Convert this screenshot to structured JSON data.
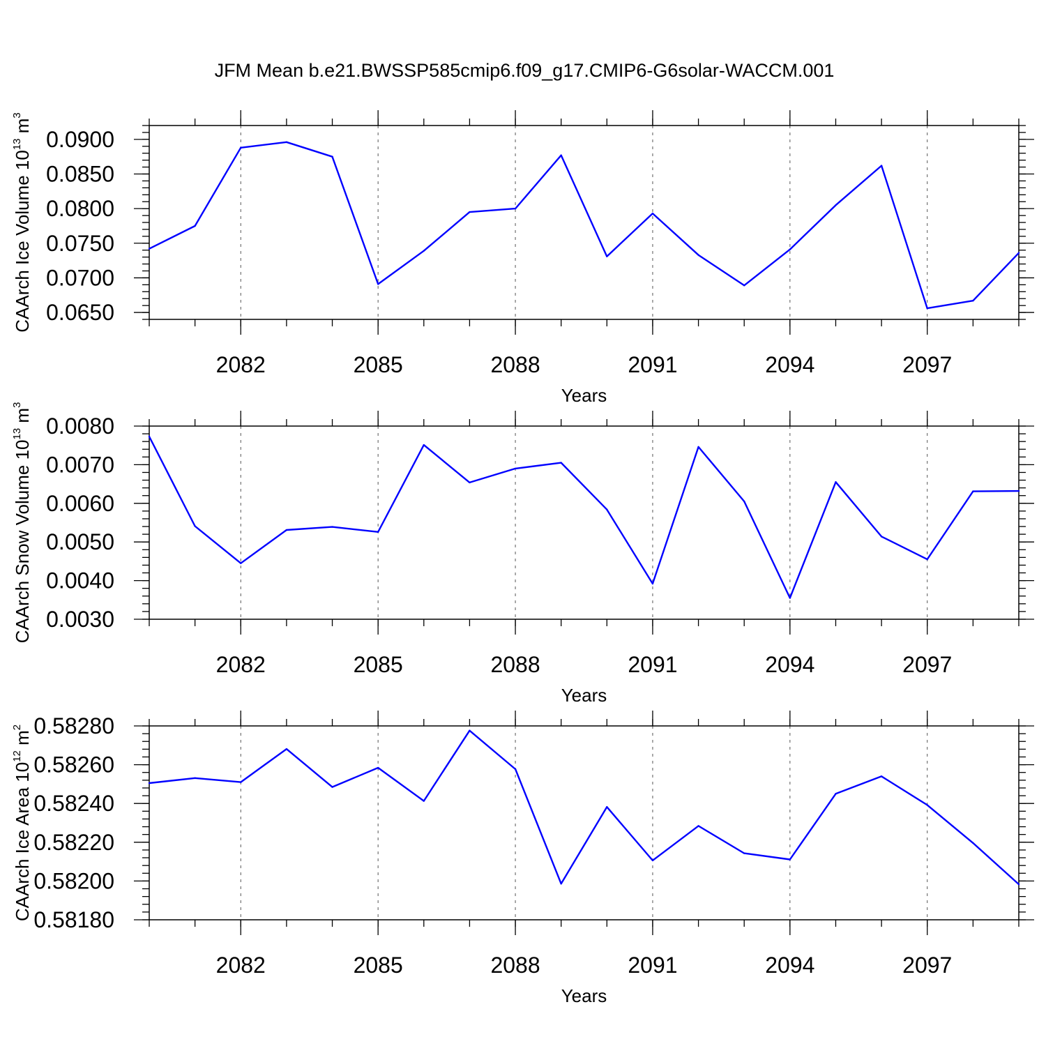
{
  "title": "JFM Mean b.e21.BWSSP585cmip6.f09_g17.CMIP6-G6solar-WACCM.001",
  "colors": {
    "line": "#0000ff",
    "axis": "#000000",
    "grid": "#555555",
    "background": "#ffffff"
  },
  "chart_data": [
    {
      "type": "line",
      "ylabel": "CAArch Ice Volume 10",
      "ylabel_exponent": "13",
      "ylabel_unit": "m",
      "ylabel_unit_exponent": "3",
      "xlabel": "Years",
      "xlim": [
        2080,
        2099
      ],
      "ylim": [
        0.064,
        0.092
      ],
      "x_ticks": [
        2082,
        2085,
        2088,
        2091,
        2094,
        2097
      ],
      "x_tick_labels": [
        "2082",
        "2085",
        "2088",
        "2091",
        "2094",
        "2097"
      ],
      "y_ticks": [
        0.065,
        0.07,
        0.075,
        0.08,
        0.085,
        0.09
      ],
      "y_tick_labels": [
        "0.0650",
        "0.0700",
        "0.0750",
        "0.0800",
        "0.0850",
        "0.0900"
      ],
      "grid": "vertical dashed at labeled years",
      "x": [
        2080,
        2081,
        2082,
        2083,
        2084,
        2085,
        2086,
        2087,
        2088,
        2089,
        2090,
        2091,
        2092,
        2093,
        2094,
        2095,
        2096,
        2097,
        2098,
        2099
      ],
      "values": [
        0.0742,
        0.0775,
        0.0888,
        0.0896,
        0.0875,
        0.0691,
        0.0739,
        0.0795,
        0.08,
        0.0877,
        0.0731,
        0.0793,
        0.0733,
        0.0689,
        0.0741,
        0.0805,
        0.0862,
        0.0656,
        0.0667,
        0.0736
      ]
    },
    {
      "type": "line",
      "ylabel": "CAArch Snow Volume 10",
      "ylabel_exponent": "13",
      "ylabel_unit": "m",
      "ylabel_unit_exponent": "3",
      "xlabel": "Years",
      "xlim": [
        2080,
        2099
      ],
      "ylim": [
        0.003,
        0.008
      ],
      "x_ticks": [
        2082,
        2085,
        2088,
        2091,
        2094,
        2097
      ],
      "x_tick_labels": [
        "2082",
        "2085",
        "2088",
        "2091",
        "2094",
        "2097"
      ],
      "y_ticks": [
        0.003,
        0.004,
        0.005,
        0.006,
        0.007,
        0.008
      ],
      "y_tick_labels": [
        "0.0030",
        "0.0040",
        "0.0050",
        "0.0060",
        "0.0070",
        "0.0080"
      ],
      "grid": "vertical dashed at labeled years",
      "x": [
        2080,
        2081,
        2082,
        2083,
        2084,
        2085,
        2086,
        2087,
        2088,
        2089,
        2090,
        2091,
        2092,
        2093,
        2094,
        2095,
        2096,
        2097,
        2098,
        2099
      ],
      "values": [
        0.00773,
        0.00541,
        0.00445,
        0.00531,
        0.00539,
        0.00526,
        0.00751,
        0.00654,
        0.0069,
        0.00705,
        0.00584,
        0.00392,
        0.00746,
        0.00605,
        0.00355,
        0.00655,
        0.00514,
        0.00455,
        0.00631,
        0.00632
      ]
    },
    {
      "type": "line",
      "ylabel": "CAArch Ice Area 10",
      "ylabel_exponent": "12",
      "ylabel_unit": "m",
      "ylabel_unit_exponent": "2",
      "xlabel": "Years",
      "xlim": [
        2080,
        2099
      ],
      "ylim": [
        0.5818,
        0.5828
      ],
      "x_ticks": [
        2082,
        2085,
        2088,
        2091,
        2094,
        2097
      ],
      "x_tick_labels": [
        "2082",
        "2085",
        "2088",
        "2091",
        "2094",
        "2097"
      ],
      "y_ticks": [
        0.5818,
        0.582,
        0.5822,
        0.5824,
        0.5826,
        0.5828
      ],
      "y_tick_labels": [
        "0.58180",
        "0.58200",
        "0.58220",
        "0.58240",
        "0.58260",
        "0.58280"
      ],
      "grid": "vertical dashed at labeled years",
      "x": [
        2080,
        2081,
        2082,
        2083,
        2084,
        2085,
        2086,
        2087,
        2088,
        2089,
        2090,
        2091,
        2092,
        2093,
        2094,
        2095,
        2096,
        2097,
        2098,
        2099
      ],
      "values": [
        0.582505,
        0.582531,
        0.58251,
        0.582681,
        0.582485,
        0.582584,
        0.582413,
        0.582776,
        0.582577,
        0.581986,
        0.582382,
        0.582106,
        0.582284,
        0.582143,
        0.582111,
        0.58245,
        0.58254,
        0.582392,
        0.582196,
        0.581983
      ]
    }
  ]
}
